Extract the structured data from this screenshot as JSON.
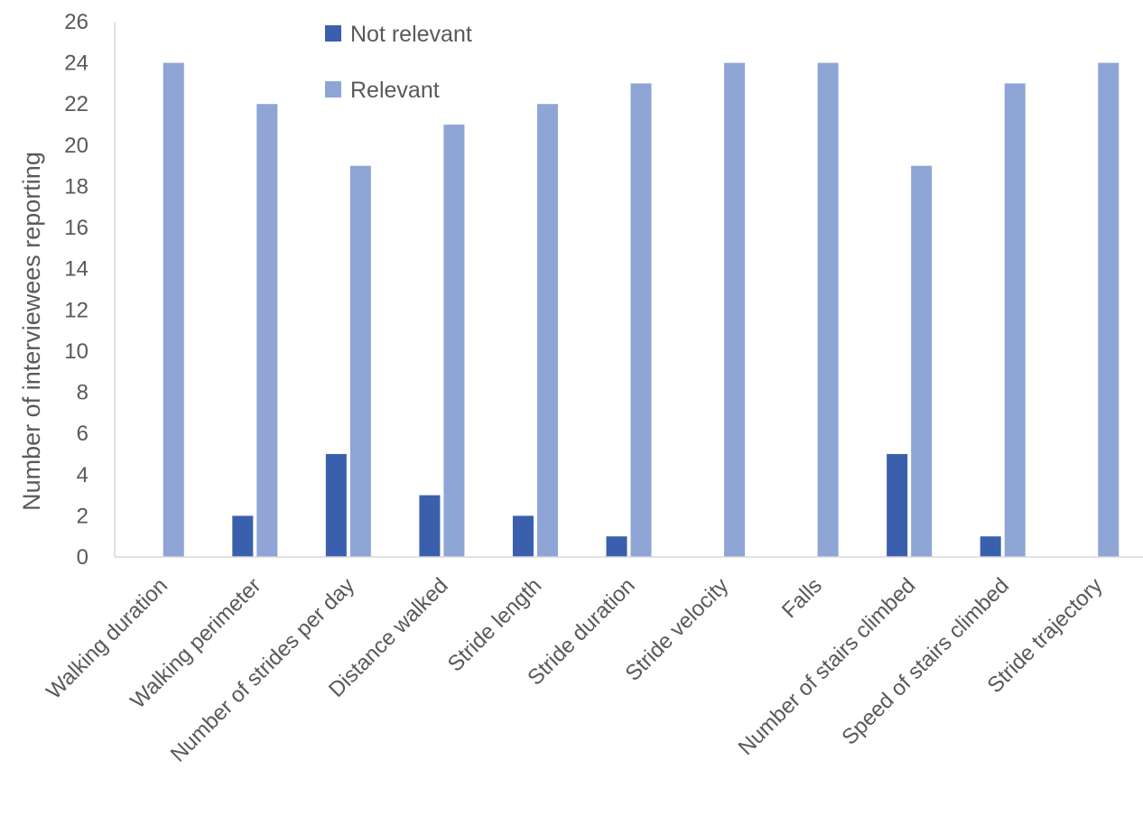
{
  "chart_data": {
    "type": "bar",
    "title": "",
    "xlabel": "",
    "ylabel": "Number of interviewees reporting",
    "ylim": [
      0,
      26
    ],
    "ytick_step": 2,
    "grid": false,
    "legend_position": "top-center",
    "categories": [
      "Walking duration",
      "Walking perimeter",
      "Number of strides per day",
      "Distance walked",
      "Stride length",
      "Stride duration",
      "Stride velocity",
      "Falls",
      "Number of stairs climbed",
      "Speed of stairs climbed",
      "Stride trajectory"
    ],
    "series": [
      {
        "name": "Not relevant",
        "color": "#3A60AD",
        "values": [
          0,
          2,
          5,
          3,
          2,
          1,
          0,
          0,
          5,
          1,
          0
        ]
      },
      {
        "name": "Relevant",
        "color": "#8EA5D6",
        "values": [
          24,
          22,
          19,
          21,
          22,
          23,
          24,
          24,
          19,
          23,
          24
        ]
      }
    ]
  }
}
